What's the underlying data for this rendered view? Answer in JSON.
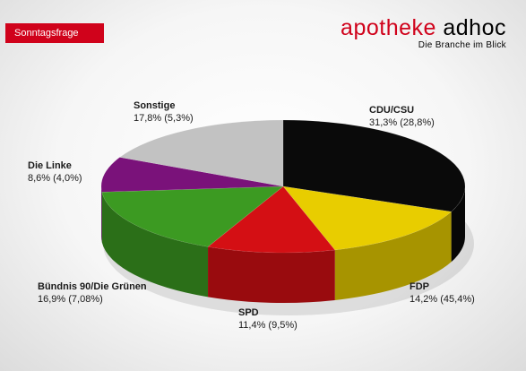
{
  "header": {
    "badge": "Sonntagsfrage",
    "brand_part1": "apotheke",
    "brand_part2": "adhoc",
    "tagline": "Die Branche im Blick"
  },
  "chart_data": {
    "type": "pie",
    "title": "",
    "slices": [
      {
        "name": "CDU/CSU",
        "value": 31.3,
        "previous": 28.8,
        "label": "31,3% (28,8%)",
        "color": "#0a0a0a"
      },
      {
        "name": "FDP",
        "value": 14.2,
        "previous": 45.4,
        "label": "14,2% (45,4%)",
        "color": "#e8cd00"
      },
      {
        "name": "SPD",
        "value": 11.4,
        "previous": 9.5,
        "label": "11,4% (9,5%)",
        "color": "#d40f14"
      },
      {
        "name": "Bündnis 90/Die Grünen",
        "value": 16.9,
        "previous": 7.08,
        "label": "16,9% (7,08%)",
        "color": "#3c9a22"
      },
      {
        "name": "Die Linke",
        "value": 8.6,
        "previous": 4.0,
        "label": "8,6% (4,0%)",
        "color": "#7a127a"
      },
      {
        "name": "Sonstige",
        "value": 17.8,
        "previous": 5.3,
        "label": "17,8% (5,3%)",
        "color": "#c2c2c2"
      }
    ]
  }
}
